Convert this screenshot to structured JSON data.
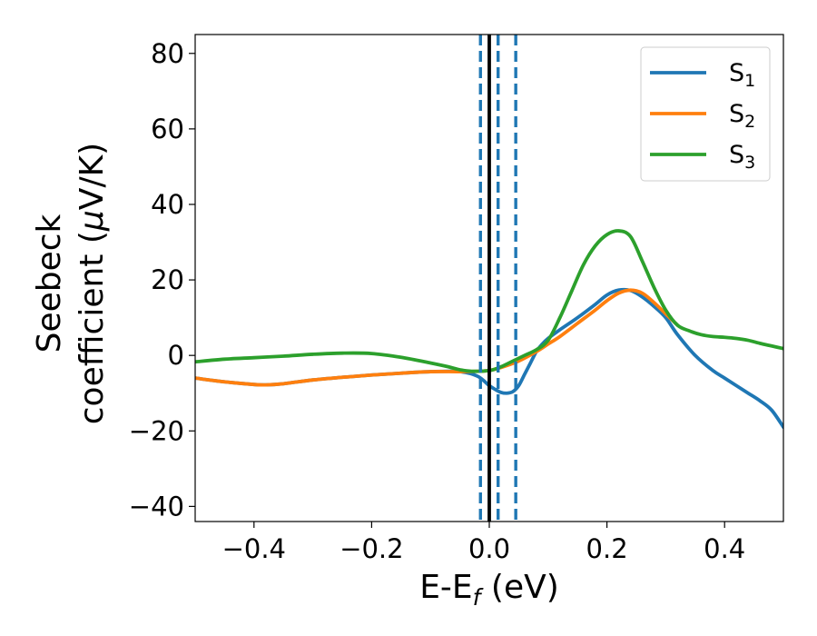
{
  "chart_data": {
    "type": "line",
    "xlabel": {
      "main": "E-E",
      "sub": "f",
      "tail": " (eV)"
    },
    "ylabel": {
      "line1": "Seebeck",
      "line2": "coefficient  (",
      "mu": "μ",
      "line2_tail": "V/K)"
    },
    "xlim": [
      -0.5,
      0.5
    ],
    "ylim": [
      -44,
      85
    ],
    "xticks": [
      -0.4,
      -0.2,
      0.0,
      0.2,
      0.4
    ],
    "xtick_labels": [
      "−0.4",
      "−0.2",
      "0.0",
      "0.2",
      "0.4"
    ],
    "yticks": [
      -40,
      -20,
      0,
      20,
      40,
      60,
      80
    ],
    "ytick_labels": [
      "−40",
      "−20",
      "0",
      "20",
      "40",
      "60",
      "80"
    ],
    "legend_position": "top-right",
    "vlines": [
      {
        "x": 0.0,
        "style": "solid",
        "color": "#000000"
      },
      {
        "x": -0.015,
        "style": "dashed",
        "color": "#1f77b4"
      },
      {
        "x": 0.015,
        "style": "dashed",
        "color": "#1f77b4"
      },
      {
        "x": 0.045,
        "style": "dashed",
        "color": "#1f77b4"
      }
    ],
    "series": [
      {
        "name": "S",
        "sub": "1",
        "color": "#1f77b4",
        "x": [
          -0.5,
          -0.45,
          -0.4,
          -0.38,
          -0.35,
          -0.3,
          -0.25,
          -0.2,
          -0.15,
          -0.1,
          -0.05,
          -0.02,
          0.0,
          0.01,
          0.02,
          0.03,
          0.04,
          0.05,
          0.06,
          0.07,
          0.08,
          0.09,
          0.1,
          0.12,
          0.15,
          0.18,
          0.2,
          0.22,
          0.24,
          0.26,
          0.28,
          0.3,
          0.32,
          0.35,
          0.38,
          0.4,
          0.42,
          0.44,
          0.46,
          0.48,
          0.5
        ],
        "y": [
          -6,
          -7,
          -7.7,
          -7.8,
          -7.5,
          -6.5,
          -5.8,
          -5.2,
          -4.7,
          -4.3,
          -4.3,
          -5.5,
          -8,
          -9,
          -9.8,
          -10,
          -9.6,
          -8,
          -5,
          -2,
          1,
          3,
          4.5,
          6.8,
          10,
          13.5,
          16,
          17.3,
          17.2,
          15.5,
          13,
          10,
          5.5,
          0,
          -4,
          -6,
          -8,
          -10,
          -12,
          -14.5,
          -19
        ]
      },
      {
        "name": "S",
        "sub": "2",
        "color": "#ff7f0e",
        "x": [
          -0.5,
          -0.45,
          -0.4,
          -0.38,
          -0.35,
          -0.3,
          -0.25,
          -0.2,
          -0.15,
          -0.1,
          -0.05,
          -0.02,
          0.0,
          0.02,
          0.05,
          0.08,
          0.1,
          0.12,
          0.15,
          0.18,
          0.2,
          0.22,
          0.24,
          0.26,
          0.28,
          0.3,
          0.32
        ],
        "y": [
          -6,
          -7,
          -7.7,
          -7.8,
          -7.5,
          -6.5,
          -5.8,
          -5.2,
          -4.7,
          -4.3,
          -4.3,
          -4.2,
          -4,
          -3.2,
          -1.5,
          1,
          3,
          5,
          8.5,
          12,
          14.5,
          16.5,
          17.3,
          16.5,
          14,
          11,
          8
        ]
      },
      {
        "name": "S",
        "sub": "3",
        "color": "#2ca02c",
        "x": [
          -0.5,
          -0.45,
          -0.4,
          -0.35,
          -0.3,
          -0.25,
          -0.2,
          -0.15,
          -0.1,
          -0.07,
          -0.05,
          -0.03,
          0.0,
          0.02,
          0.04,
          0.06,
          0.08,
          0.1,
          0.12,
          0.14,
          0.16,
          0.18,
          0.2,
          0.22,
          0.24,
          0.26,
          0.28,
          0.3,
          0.32,
          0.34,
          0.36,
          0.38,
          0.4,
          0.42,
          0.44,
          0.46,
          0.48,
          0.5
        ],
        "y": [
          -1.7,
          -1,
          -0.6,
          -0.2,
          0.3,
          0.6,
          0.5,
          -0.5,
          -2,
          -3,
          -3.8,
          -4.2,
          -4,
          -3,
          -1.5,
          0,
          1.5,
          4,
          10,
          17,
          24,
          29,
          32,
          33,
          31.5,
          25,
          18,
          12,
          8,
          6.5,
          5.5,
          5,
          4.8,
          4.5,
          4,
          3.2,
          2.5,
          1.8
        ]
      }
    ]
  }
}
